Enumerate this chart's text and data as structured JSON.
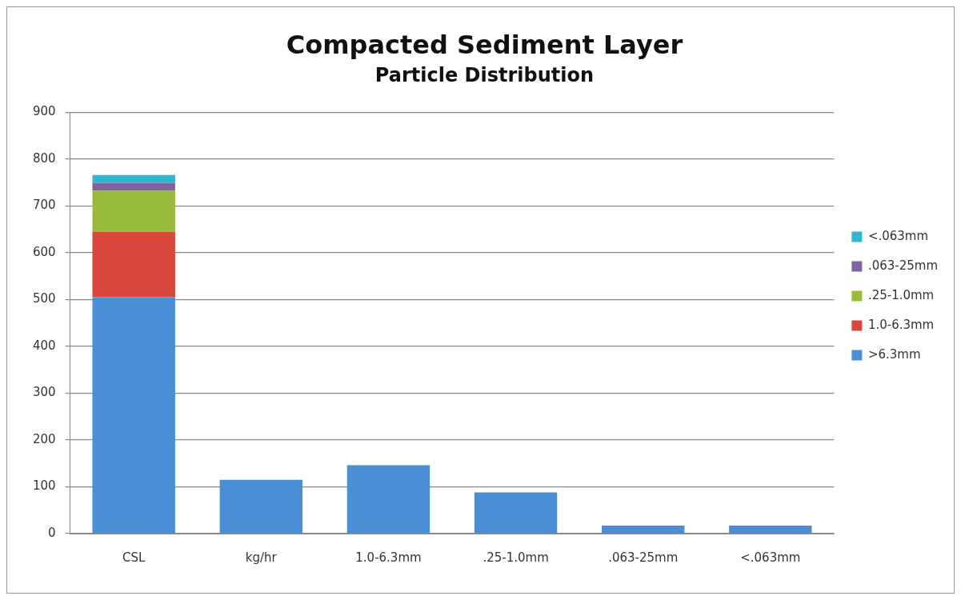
{
  "chart_data": {
    "type": "bar",
    "title": "Compacted Sediment Layer",
    "subtitle": "Particle Distribution",
    "categories": [
      "CSL",
      "kg/hr",
      "1.0-6.3mm",
      ".25-1.0mm",
      ".063-25mm",
      "<.063mm"
    ],
    "stacked": true,
    "series": [
      {
        "name": ">6.3mm",
        "color": "#4a8fd6",
        "values": [
          505,
          115,
          146,
          88,
          17,
          17
        ]
      },
      {
        "name": "1.0-6.3mm",
        "color": "#d9463c",
        "values": [
          140,
          null,
          null,
          null,
          null,
          null
        ]
      },
      {
        "name": ".25-1.0mm",
        "color": "#9bbb3c",
        "values": [
          87,
          null,
          null,
          null,
          null,
          null
        ]
      },
      {
        "name": ".063-25mm",
        "color": "#8064a2",
        "values": [
          17,
          null,
          null,
          null,
          null,
          null
        ]
      },
      {
        "name": "<.063mm",
        "color": "#2fb6d0",
        "values": [
          17,
          null,
          null,
          null,
          null,
          null
        ]
      }
    ],
    "ylim": [
      0,
      900
    ],
    "yticks": [
      0,
      100,
      200,
      300,
      400,
      500,
      600,
      700,
      800,
      900
    ],
    "grid": "y",
    "legend": "right"
  }
}
